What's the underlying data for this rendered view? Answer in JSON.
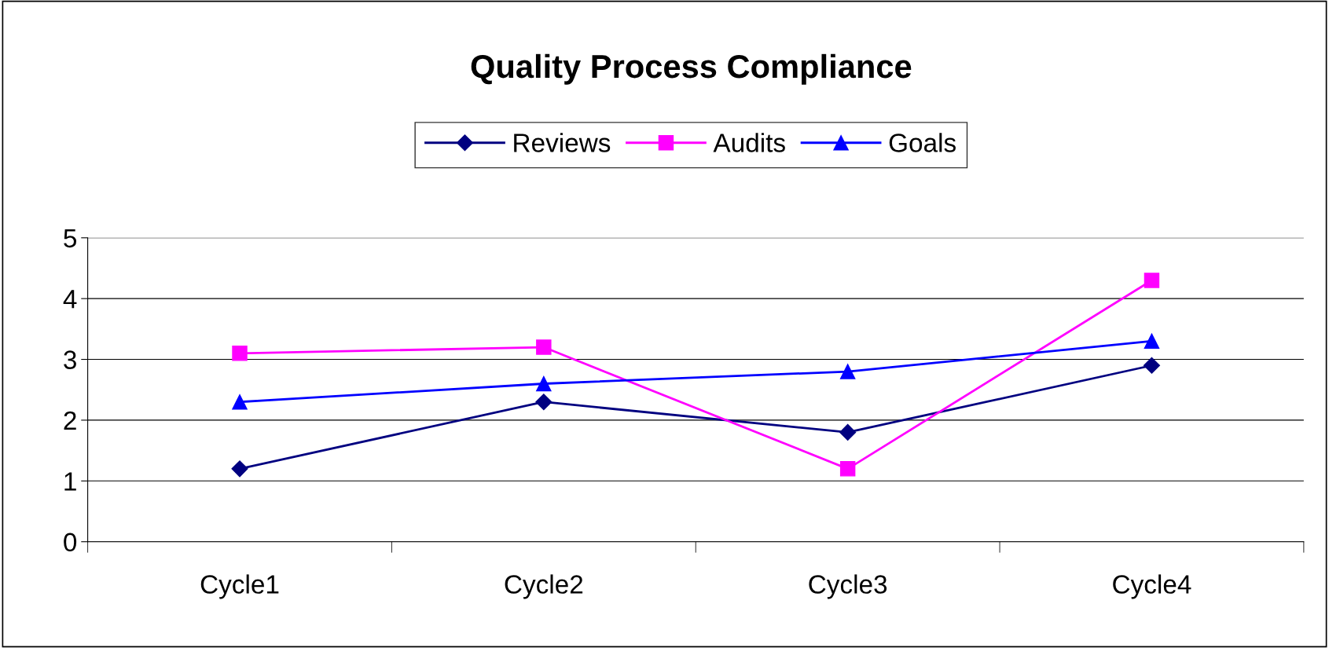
{
  "chart_data": {
    "type": "line",
    "title": "Quality Process Compliance",
    "categories": [
      "Cycle1",
      "Cycle2",
      "Cycle3",
      "Cycle4"
    ],
    "series": [
      {
        "name": "Reviews",
        "color": "#000080",
        "marker": "diamond",
        "values": [
          1.2,
          2.3,
          1.8,
          2.9
        ]
      },
      {
        "name": "Audits",
        "color": "#ff00ff",
        "marker": "square",
        "values": [
          3.1,
          3.2,
          1.2,
          4.3
        ]
      },
      {
        "name": "Goals",
        "color": "#0000ff",
        "marker": "triangle",
        "values": [
          2.3,
          2.6,
          2.8,
          3.3
        ]
      }
    ],
    "ylim": [
      0,
      5
    ],
    "yticks": [
      0,
      1,
      2,
      3,
      4,
      5
    ],
    "grid": "y",
    "legend": "top",
    "line_style": "solid"
  }
}
